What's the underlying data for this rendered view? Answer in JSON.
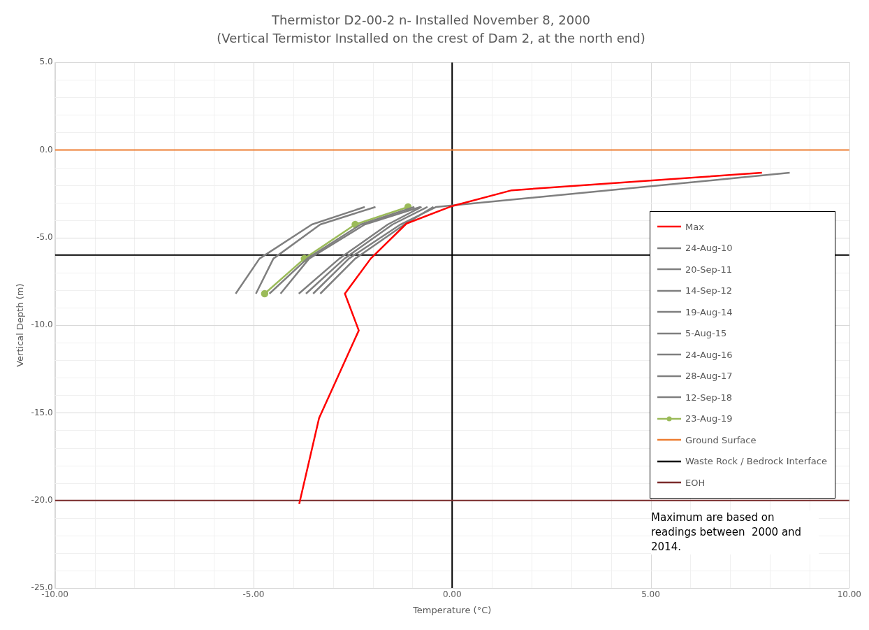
{
  "chart_data": {
    "type": "line",
    "title": "Thermistor D2-00-2 n- Installed November 8, 2000",
    "subtitle": "(Vertical Termistor Installed on the crest of Dam 2, at the north end)",
    "xlabel": "Temperature (°C)",
    "ylabel": "Vertical Depth (m)",
    "xlim": [
      -10,
      10
    ],
    "ylim": [
      -25,
      5
    ],
    "xticks": [
      {
        "value": -10,
        "label": "-10.00"
      },
      {
        "value": -5,
        "label": "-5.00"
      },
      {
        "value": 0,
        "label": "0.00"
      },
      {
        "value": 5,
        "label": "5.00"
      },
      {
        "value": 10,
        "label": "10.00"
      }
    ],
    "yticks": [
      {
        "value": 5,
        "label": "5.0"
      },
      {
        "value": 0,
        "label": "0.0"
      },
      {
        "value": -5,
        "label": "-5.0"
      },
      {
        "value": -10,
        "label": "-10.0"
      },
      {
        "value": -15,
        "label": "-15.0"
      },
      {
        "value": -20,
        "label": "-20.0"
      },
      {
        "value": -25,
        "label": "-25.0"
      }
    ],
    "grid": true,
    "legend": "right",
    "marker": "none",
    "line_style": "solid",
    "series": [
      {
        "name": "Max",
        "color": "#ff0000",
        "x": [
          7.8,
          1.5,
          0.0,
          -1.15,
          -2.05,
          -2.7,
          -2.35,
          -3.35,
          -3.85
        ],
        "values": [
          -1.3,
          -2.3,
          -3.2,
          -4.2,
          -6.2,
          -8.2,
          -10.3,
          -15.3,
          -20.2
        ]
      },
      {
        "name": "24-Aug-10",
        "color": "#7f7f7f",
        "x": [
          -2.2,
          -3.53,
          -4.85,
          -5.45
        ],
        "values": [
          -3.25,
          -4.25,
          -6.2,
          -8.2
        ]
      },
      {
        "name": "20-Sep-11",
        "color": "#7f7f7f",
        "x": [
          -1.93,
          -3.32,
          -4.5,
          -4.94
        ],
        "values": [
          -3.25,
          -4.25,
          -6.2,
          -8.2
        ]
      },
      {
        "name": "14-Sep-12",
        "color": "#7f7f7f",
        "x": [
          -0.95,
          -2.3,
          -3.65,
          -4.6
        ],
        "values": [
          -3.25,
          -4.25,
          -6.2,
          -8.2
        ]
      },
      {
        "name": "19-Aug-14",
        "color": "#7f7f7f",
        "x": [
          8.5,
          -0.4,
          -1.3,
          -2.6,
          -3.5
        ],
        "values": [
          -1.3,
          -3.25,
          -4.25,
          -6.2,
          -8.2
        ]
      },
      {
        "name": "5-Aug-15",
        "color": "#7f7f7f",
        "x": [
          -0.8,
          -2.2,
          -3.6,
          -4.32
        ],
        "values": [
          -3.25,
          -4.25,
          -6.2,
          -8.2
        ]
      },
      {
        "name": "24-Aug-16",
        "color": "#7f7f7f",
        "x": [
          -0.77,
          -1.62,
          -2.84,
          -3.86
        ],
        "values": [
          -3.25,
          -4.25,
          -6.2,
          -8.2
        ]
      },
      {
        "name": "28-Aug-17",
        "color": "#7f7f7f",
        "x": [
          -0.62,
          -1.5,
          -2.71,
          -3.68
        ],
        "values": [
          -3.25,
          -4.25,
          -6.2,
          -8.2
        ]
      },
      {
        "name": "12-Sep-18",
        "color": "#7f7f7f",
        "x": [
          -0.47,
          -1.2,
          -2.44,
          -3.32
        ],
        "values": [
          -3.25,
          -4.25,
          -6.2,
          -8.2
        ]
      },
      {
        "name": "23-Aug-19",
        "color": "#9bbb59",
        "marker": "circle",
        "x": [
          -1.11,
          -2.44,
          -3.72,
          -4.72
        ],
        "values": [
          -3.25,
          -4.25,
          -6.2,
          -8.2
        ]
      }
    ],
    "ref_lines": [
      {
        "axis": "y",
        "value": 0,
        "label": "Ground Surface",
        "color": "#ed7d31"
      },
      {
        "axis": "y",
        "value": -6,
        "label": "Waste Rock / Bedrock Interface",
        "color": "#000000"
      },
      {
        "axis": "y",
        "value": -20,
        "label": "EOH",
        "color": "#7b2c2c"
      },
      {
        "axis": "x",
        "value": 0,
        "color": "#000000"
      }
    ],
    "annotations": [
      "Maximum are based on readings between  2000 and 2014."
    ]
  }
}
